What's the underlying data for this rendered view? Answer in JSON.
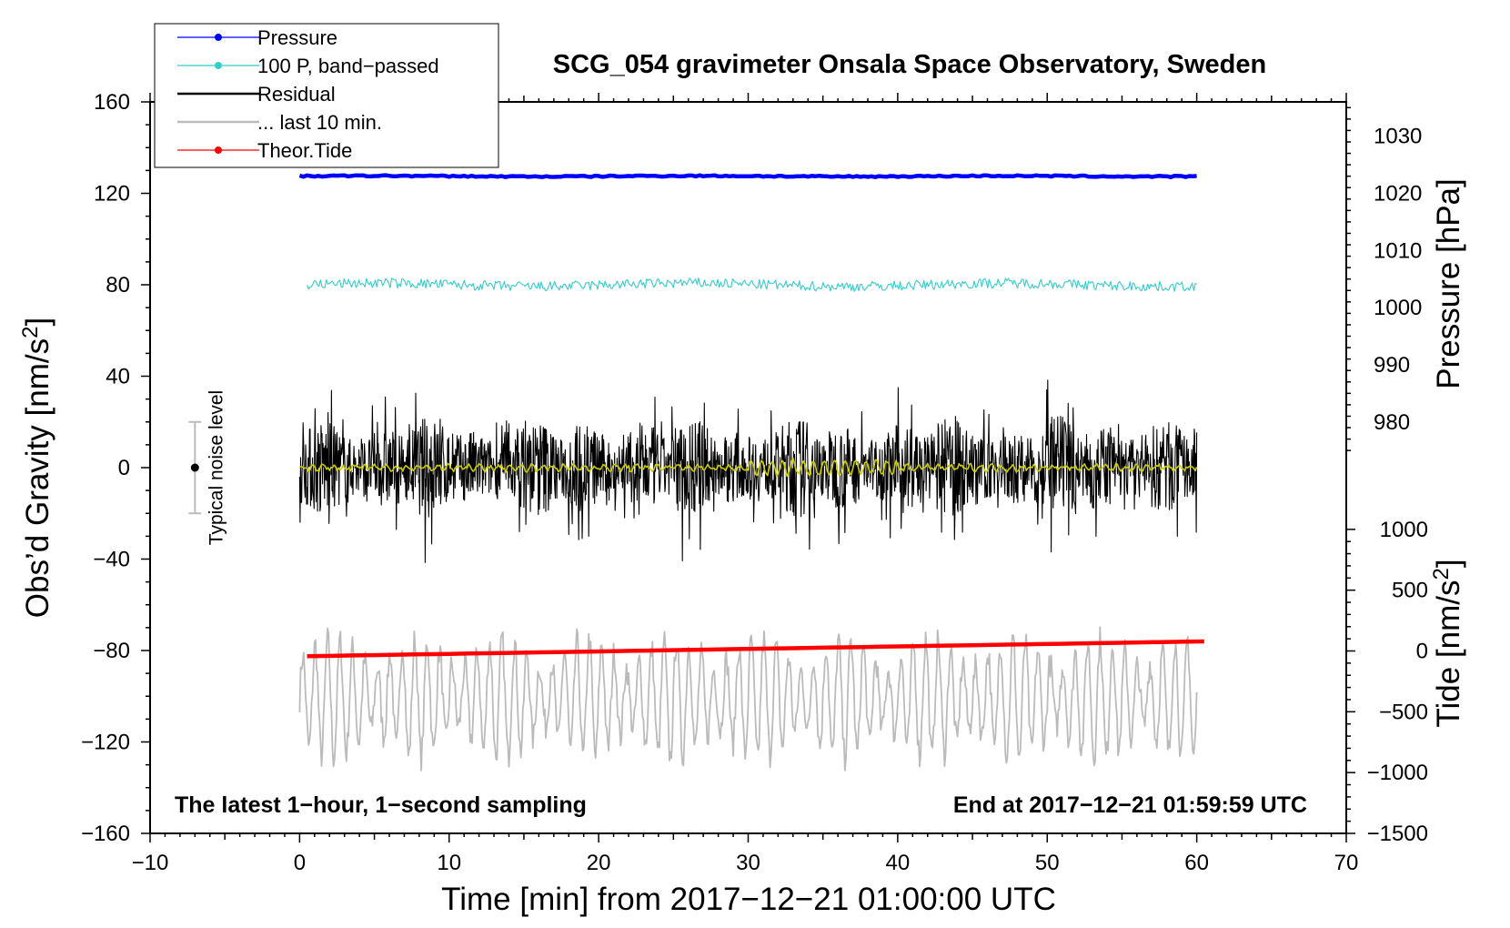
{
  "chart_data": {
    "type": "line",
    "title": "SCG_054 gravimeter Onsala Space Observatory, Sweden",
    "xlabel": "Time [min] from 2017−12−21 01:00:00 UTC",
    "ylabel_main": "Obs’d Gravity [nm/s",
    "ylabel_main_sup": "2",
    "ylabel_main_end": "]",
    "ylabel_pressure": "Pressure [hPa]",
    "ylabel_tide": "Tide [nm/s",
    "ylabel_tide_sup": "2",
    "ylabel_tide_end": "]",
    "xlim": [
      -10,
      70
    ],
    "ylim": [
      -160,
      160
    ],
    "x_ticks": [
      -10,
      0,
      10,
      20,
      30,
      40,
      50,
      60,
      70
    ],
    "x_tick_labels": [
      "−10",
      "0",
      "10",
      "20",
      "30",
      "40",
      "50",
      "60",
      "70"
    ],
    "y_ticks": [
      160,
      120,
      80,
      40,
      0,
      -40,
      -80,
      -120,
      -160
    ],
    "y_tick_labels": [
      "160",
      "120",
      "80",
      "40",
      "0",
      "−40",
      "−80",
      "−120",
      "−160"
    ],
    "pressure_axis": {
      "ticks": [
        1030,
        1020,
        1010,
        1000,
        990,
        980
      ],
      "tick_labels": [
        "1030",
        "1020",
        "1010",
        "1000",
        "990",
        "980"
      ],
      "map": {
        "value_a": 1020,
        "y_a": 120,
        "value_b": 980,
        "y_b": 20
      }
    },
    "tide_axis": {
      "ticks": [
        1000,
        500,
        0,
        -500,
        -1000,
        -1500
      ],
      "tick_labels": [
        "1000",
        "500",
        "0",
        "−500",
        "−1000",
        "−1500"
      ],
      "map": {
        "value_a": 1000,
        "y_a": -27,
        "value_b": -1500,
        "y_b": -160
      }
    },
    "legend": [
      {
        "label": "Pressure",
        "color": "#0000ff",
        "marker": true
      },
      {
        "label": "100 P, band−passed",
        "color": "#33cccc",
        "marker": true
      },
      {
        "label": "Residual",
        "color": "#000000",
        "marker": false
      },
      {
        "label": "... last 10 min.",
        "color": "#bbbbbb",
        "marker": false
      },
      {
        "label": "Theor.Tide",
        "color": "#ff0000",
        "marker": true
      }
    ],
    "series": [
      {
        "name": "Pressure",
        "color": "#0000ff",
        "x_range": [
          0,
          60
        ],
        "offset": 127.5,
        "amplitude": 0.5,
        "noise": 0.3
      },
      {
        "name": "100 P, band−passed",
        "color": "#33cccc",
        "x_range": [
          0.5,
          60
        ],
        "offset": 80,
        "amplitude": 2.5,
        "noise": 2.2
      },
      {
        "name": "Residual",
        "color": "#000000",
        "x_range": [
          0,
          60
        ],
        "offset": 0,
        "amplitude": 38,
        "noise": 12
      },
      {
        "name": "Residual smoothed",
        "color": "#cccc00",
        "x_range": [
          0,
          60
        ],
        "offset": 0,
        "amplitude": 4,
        "noise": 1
      },
      {
        "name": "... last 10 min.",
        "color": "#bbbbbb",
        "x_range": [
          0,
          60
        ],
        "offset": -101,
        "amplitude": 26,
        "noise": 6
      },
      {
        "name": "Theor.Tide",
        "color": "#ff0000",
        "x_range": [
          0.5,
          60.5
        ],
        "y_start": -82.5,
        "y_end": -76
      }
    ],
    "noise_bar": {
      "label": "Typical noise level",
      "x": -7,
      "center": 0,
      "half_range": 20
    },
    "annotations": {
      "left": "The latest 1−hour, 1−second sampling",
      "right": "End at 2017−12−21 01:59:59 UTC"
    }
  }
}
